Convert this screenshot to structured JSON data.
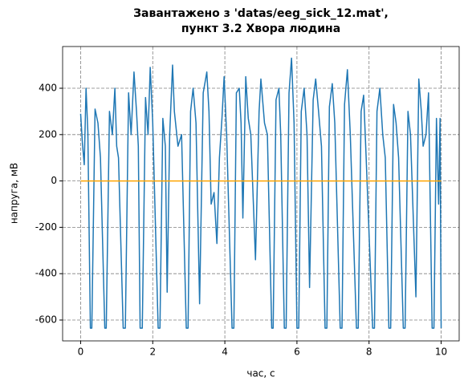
{
  "chart_data": {
    "type": "line",
    "title": "Завантажено з 'datas/eeg_sick_12.mat',\nпункт 3.2 Хвора людина",
    "xlabel": "час, с",
    "ylabel": "напруга, мВ",
    "xlim": [
      -0.5,
      10.5
    ],
    "xticks": [
      0,
      2,
      4,
      6,
      8,
      10
    ],
    "ylim": [
      -690,
      580
    ],
    "yticks": [
      -600,
      -400,
      -200,
      0,
      200,
      400
    ],
    "grid": true,
    "series": [
      {
        "color": "#1f77b4",
        "x": [
          0,
          0.05,
          0.1,
          0.15,
          0.2,
          0.27,
          0.31,
          0.4,
          0.48,
          0.55,
          0.67,
          0.71,
          0.8,
          0.88,
          0.95,
          1.0,
          1.05,
          1.18,
          1.24,
          1.33,
          1.4,
          1.48,
          1.55,
          1.6,
          1.65,
          1.71,
          1.8,
          1.87,
          1.93,
          2.0,
          2.15,
          2.2,
          2.28,
          2.35,
          2.4,
          2.47,
          2.55,
          2.6,
          2.7,
          2.8,
          2.93,
          2.98,
          3.05,
          3.12,
          3.2,
          3.3,
          3.4,
          3.5,
          3.56,
          3.62,
          3.7,
          3.78,
          3.85,
          3.92,
          3.98,
          4.05,
          4.2,
          4.25,
          4.32,
          4.4,
          4.45,
          4.5,
          4.58,
          4.65,
          4.72,
          4.85,
          4.95,
          5.0,
          5.1,
          5.18,
          5.3,
          5.34,
          5.42,
          5.5,
          5.55,
          5.65,
          5.7,
          5.78,
          5.85,
          5.92,
          6.0,
          6.05,
          6.12,
          6.2,
          6.28,
          6.35,
          6.45,
          6.52,
          6.6,
          6.68,
          6.78,
          6.83,
          6.9,
          6.98,
          7.05,
          7.2,
          7.25,
          7.32,
          7.4,
          7.48,
          7.65,
          7.7,
          7.78,
          7.85,
          7.92,
          8.1,
          8.15,
          8.22,
          8.3,
          8.38,
          8.45,
          8.55,
          8.6,
          8.68,
          8.75,
          8.82,
          8.95,
          9.0,
          9.08,
          9.15,
          9.3,
          9.38,
          9.45,
          9.5,
          9.58,
          9.65,
          9.75,
          9.8,
          9.87,
          9.93,
          9.97,
          10.0
        ],
        "values": [
          290,
          160,
          70,
          400,
          210,
          -635,
          -635,
          310,
          250,
          100,
          -635,
          -635,
          300,
          200,
          400,
          150,
          100,
          -635,
          -635,
          380,
          200,
          470,
          300,
          150,
          -635,
          -635,
          360,
          200,
          490,
          250,
          -635,
          -635,
          270,
          150,
          -480,
          200,
          500,
          300,
          150,
          200,
          -635,
          -635,
          300,
          400,
          250,
          -530,
          380,
          470,
          300,
          -100,
          -50,
          -270,
          100,
          270,
          450,
          200,
          -635,
          -635,
          380,
          400,
          250,
          -160,
          450,
          270,
          200,
          -340,
          300,
          440,
          250,
          200,
          -635,
          -635,
          350,
          400,
          200,
          -635,
          -635,
          380,
          530,
          250,
          -635,
          -635,
          300,
          400,
          200,
          -460,
          350,
          440,
          300,
          150,
          -635,
          -635,
          320,
          420,
          250,
          -635,
          -635,
          330,
          480,
          200,
          -635,
          -635,
          300,
          370,
          100,
          -635,
          -635,
          300,
          400,
          200,
          100,
          -635,
          -635,
          330,
          250,
          100,
          -635,
          -635,
          300,
          200,
          -500,
          440,
          300,
          150,
          200,
          380,
          -635,
          -635,
          270,
          -100,
          270,
          -635
        ]
      },
      {
        "color": "#ffa500",
        "x": [
          0,
          10
        ],
        "values": [
          0,
          0
        ]
      }
    ]
  }
}
